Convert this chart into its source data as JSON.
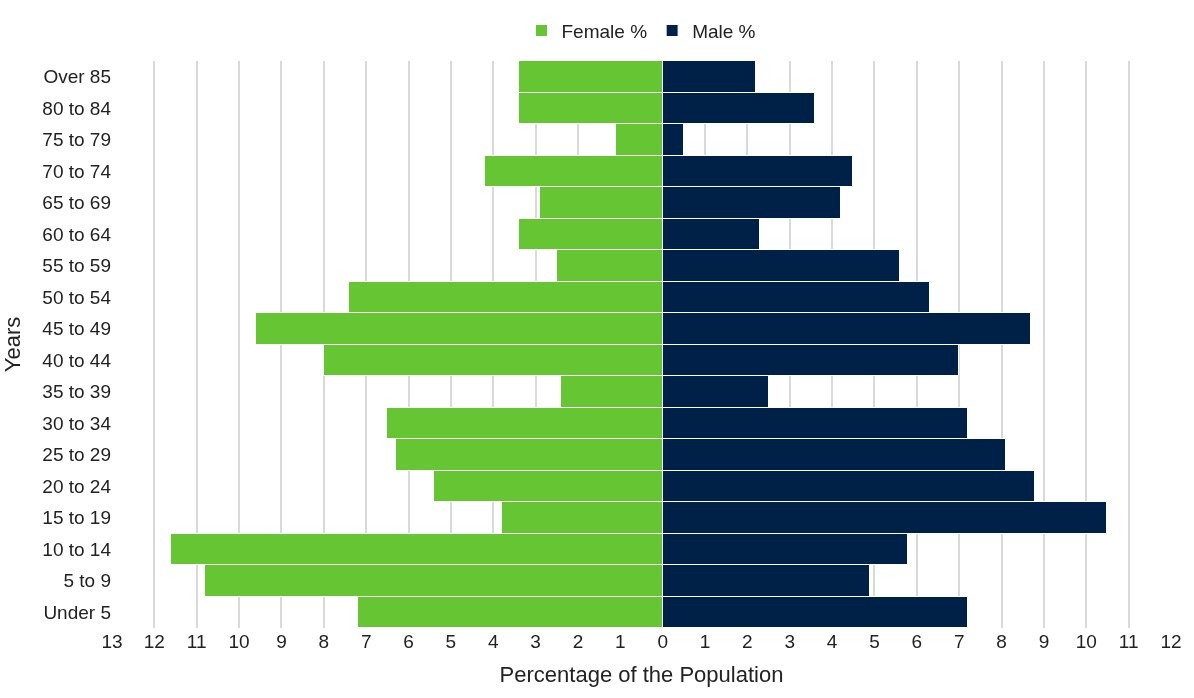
{
  "chart_data": {
    "type": "bar",
    "orientation": "horizontal",
    "stacked": true,
    "xlabel": "Percentage of the Population",
    "ylabel": "Years",
    "categories": [
      "Over 85",
      "80 to 84",
      "75 to 79",
      "70 to 74",
      "65 to 69",
      "60 to 64",
      "55 to 59",
      "50 to 54",
      "45 to 49",
      "40 to 44",
      "35 to 39",
      "30 to 34",
      "25 to 29",
      "20 to 24",
      "15 to 19",
      "10 to 14",
      "5 to 9",
      "Under 5"
    ],
    "series": [
      {
        "name": "Female %",
        "color": "#66c533",
        "values": [
          -3.4,
          -3.4,
          -1.1,
          -4.2,
          -2.9,
          -3.4,
          -2.5,
          -7.4,
          -9.6,
          -8.0,
          -2.4,
          -6.5,
          -6.3,
          -5.4,
          -3.8,
          -11.6,
          -10.8,
          -7.2
        ]
      },
      {
        "name": "Male %",
        "color": "#002147",
        "values": [
          2.2,
          3.6,
          0.5,
          4.5,
          4.2,
          2.3,
          5.6,
          6.3,
          8.7,
          7.0,
          2.5,
          7.2,
          8.1,
          8.8,
          10.5,
          5.8,
          4.9,
          7.2
        ]
      }
    ],
    "xlim": [
      -13,
      12
    ],
    "xticks": [
      {
        "value": -13,
        "label": "13"
      },
      {
        "value": -12,
        "label": "12"
      },
      {
        "value": -11,
        "label": "11"
      },
      {
        "value": -10,
        "label": "10"
      },
      {
        "value": -9,
        "label": "9"
      },
      {
        "value": -8,
        "label": "8"
      },
      {
        "value": -7,
        "label": "7"
      },
      {
        "value": -6,
        "label": "6"
      },
      {
        "value": -5,
        "label": "5"
      },
      {
        "value": -4,
        "label": "4"
      },
      {
        "value": -3,
        "label": "3"
      },
      {
        "value": -2,
        "label": "2"
      },
      {
        "value": -1,
        "label": "1"
      },
      0,
      1,
      2,
      3,
      4,
      5,
      6,
      7,
      8,
      9,
      10,
      11,
      12
    ],
    "grid": "x",
    "legend": "top"
  }
}
